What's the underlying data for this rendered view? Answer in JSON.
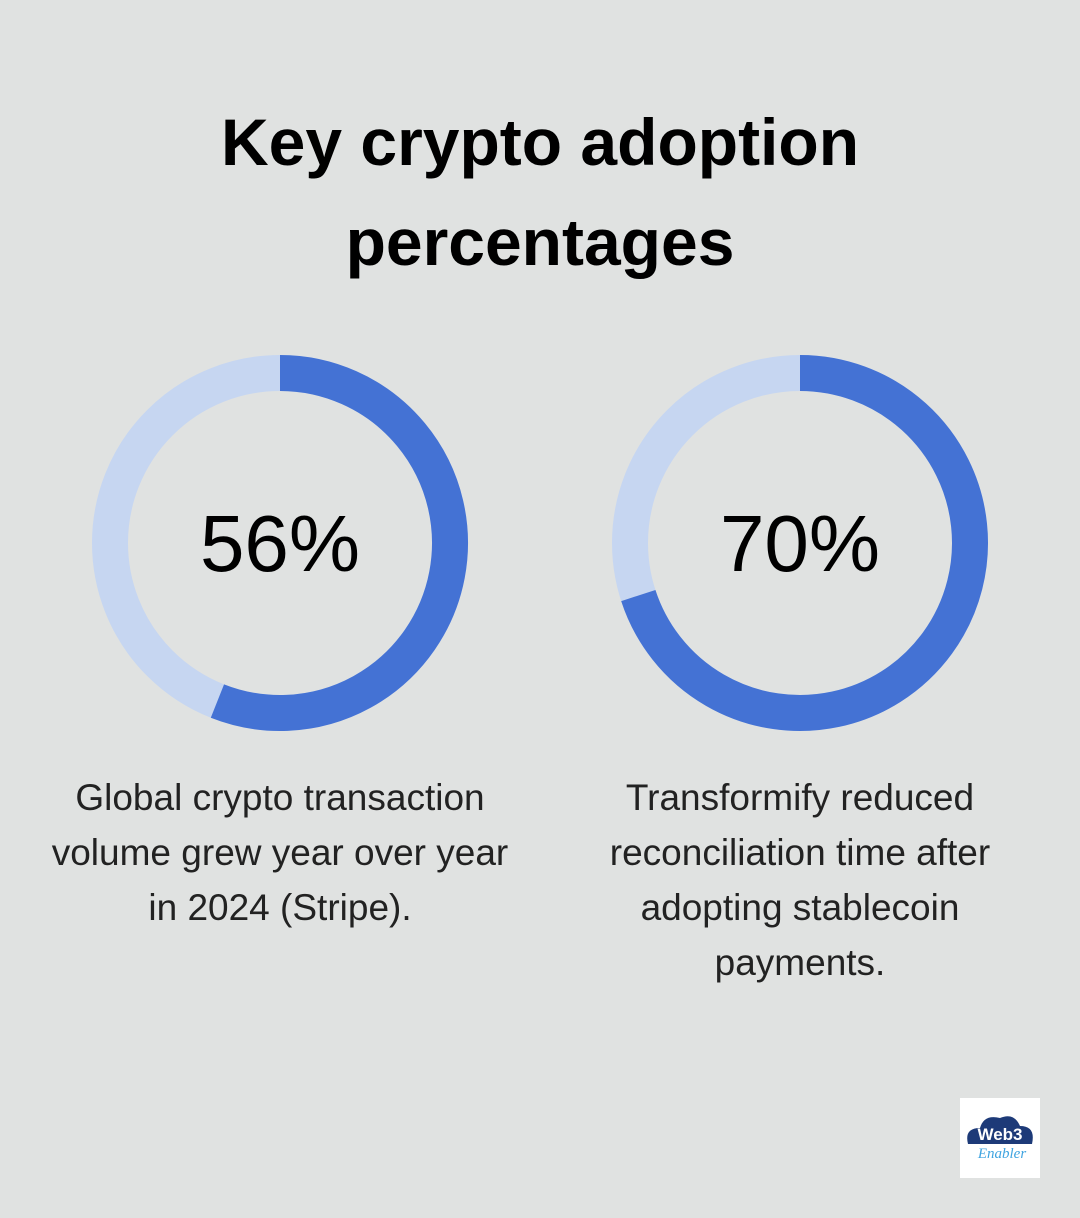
{
  "title": "Key crypto adoption percentages",
  "chart_data": [
    {
      "type": "donut",
      "values": [
        56
      ],
      "value_labels": [
        "56%"
      ],
      "ylim": [
        0,
        100
      ],
      "color": "#4472d4",
      "track_color": "#c6d6f1",
      "caption": "Global crypto transaction volume grew year over year in 2024 (Stripe)."
    },
    {
      "type": "donut",
      "values": [
        70
      ],
      "value_labels": [
        "70%"
      ],
      "ylim": [
        0,
        100
      ],
      "color": "#4472d4",
      "track_color": "#c6d6f1",
      "caption": "Transformify reduced reconciliation time after adopting stablecoin payments."
    }
  ],
  "logo": {
    "line1": "Web3",
    "line2": "Enabler"
  }
}
